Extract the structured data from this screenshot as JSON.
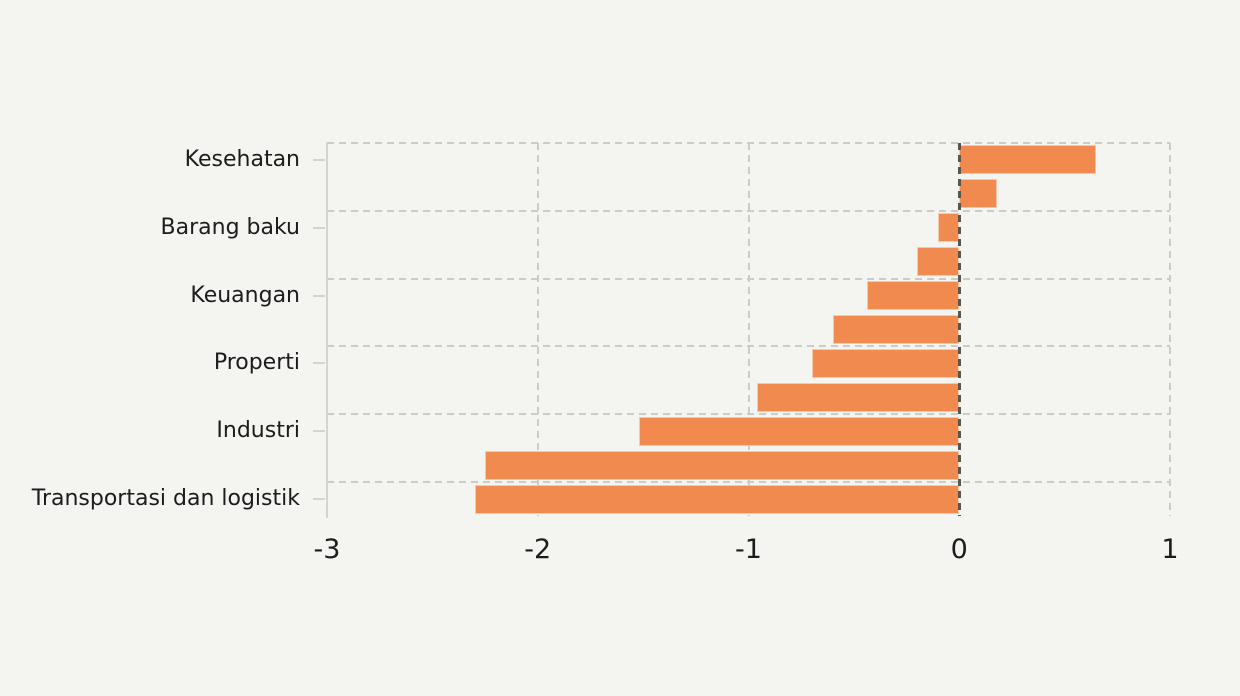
{
  "chart_data": {
    "type": "bar",
    "orientation": "horizontal",
    "title": "",
    "xlabel": "",
    "ylabel": "",
    "categories": [
      "Kesehatan",
      "",
      "Barang baku",
      "",
      "Keuangan",
      "",
      "Properti",
      "",
      "Industri",
      "",
      "Transportasi dan logistik"
    ],
    "values": [
      0.65,
      0.18,
      -0.1,
      -0.2,
      -0.44,
      -0.6,
      -0.7,
      -0.96,
      -1.52,
      -2.25,
      -2.3
    ],
    "xlim": [
      -3,
      1
    ],
    "xtick_values": [
      -3,
      -2,
      -1,
      0,
      1
    ],
    "xtick_labels": [
      "-3",
      "-2",
      "-1",
      "0",
      "1"
    ],
    "grid": "dashed",
    "legend_position": "none",
    "bar_color": "#f08a4e",
    "grid_color": "#cbcbc9",
    "zero_line_color": "#59554f",
    "axis_color": "#d3d3d0",
    "text_color": "#1c1c1c",
    "background_color": "#f4f4f1"
  }
}
